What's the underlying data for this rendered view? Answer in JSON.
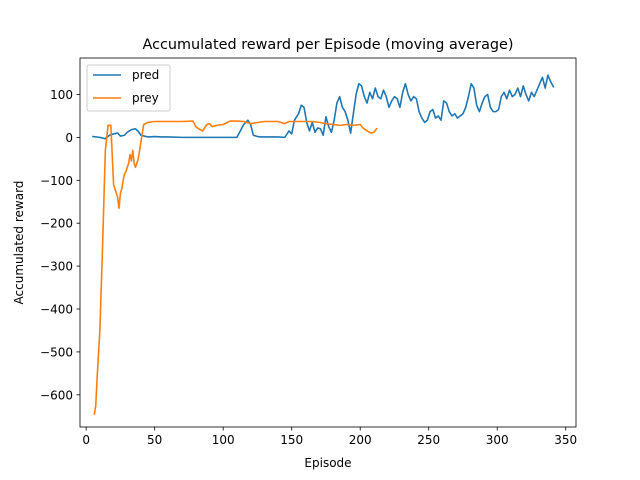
{
  "chart_data": {
    "type": "line",
    "title": "Accumulated reward per Episode (moving average)",
    "xlabel": "Episode",
    "ylabel": "Accumulated reward",
    "xlim": [
      -4.5,
      357.5
    ],
    "ylim": [
      -675,
      185
    ],
    "xticks": [
      0,
      50,
      100,
      150,
      200,
      250,
      300,
      350
    ],
    "yticks": [
      -600,
      -500,
      -400,
      -300,
      -200,
      -100,
      0,
      100
    ],
    "ytick_labels": [
      "−600",
      "−500",
      "−400",
      "−300",
      "−200",
      "−100",
      "0",
      "100"
    ],
    "legend_position": "upper-left",
    "grid": false,
    "series": [
      {
        "name": "pred",
        "color": "#1f77b4",
        "x": [
          5,
          10,
          14,
          17,
          20,
          23,
          25,
          28,
          30,
          33,
          36,
          38,
          40,
          45,
          50,
          55,
          60,
          70,
          80,
          90,
          100,
          110,
          115,
          118,
          120,
          122,
          125,
          128,
          130,
          140,
          145,
          148,
          150,
          152,
          155,
          157,
          159,
          161,
          163,
          165,
          167,
          169,
          171,
          173,
          175,
          177,
          179,
          181,
          183,
          185,
          187,
          189,
          191,
          193,
          195,
          197,
          199,
          201,
          203,
          205,
          207,
          209,
          211,
          213,
          215,
          217,
          219,
          221,
          223,
          225,
          227,
          229,
          231,
          233,
          235,
          237,
          239,
          241,
          243,
          245,
          247,
          249,
          251,
          253,
          255,
          257,
          259,
          261,
          263,
          265,
          267,
          269,
          271,
          273,
          275,
          277,
          279,
          281,
          283,
          285,
          287,
          289,
          291,
          293,
          295,
          297,
          299,
          301,
          303,
          305,
          307,
          309,
          311,
          313,
          315,
          317,
          319,
          321,
          323,
          325,
          327,
          329,
          331,
          333,
          335,
          337,
          339,
          341
        ],
        "values": [
          2,
          0,
          -3,
          5,
          8,
          10,
          3,
          5,
          12,
          18,
          20,
          14,
          5,
          1,
          2,
          1,
          1,
          0,
          0,
          0,
          0,
          0,
          30,
          40,
          30,
          5,
          2,
          1,
          1,
          1,
          0,
          15,
          8,
          40,
          55,
          75,
          70,
          35,
          15,
          35,
          12,
          22,
          20,
          5,
          48,
          25,
          12,
          40,
          80,
          95,
          70,
          60,
          40,
          10,
          55,
          100,
          125,
          120,
          95,
          80,
          105,
          90,
          115,
          95,
          90,
          110,
          95,
          70,
          85,
          95,
          90,
          70,
          105,
          125,
          100,
          85,
          95,
          90,
          60,
          45,
          35,
          40,
          60,
          65,
          45,
          50,
          40,
          85,
          80,
          60,
          50,
          55,
          45,
          50,
          55,
          70,
          95,
          125,
          115,
          75,
          60,
          80,
          95,
          100,
          70,
          60,
          60,
          65,
          95,
          105,
          90,
          110,
          95,
          100,
          115,
          95,
          120,
          100,
          85,
          105,
          95,
          110,
          125,
          140,
          115,
          145,
          130,
          118
        ]
      },
      {
        "name": "prey",
        "color": "#ff7f0e",
        "x": [
          6,
          7,
          8,
          10,
          12,
          14,
          16,
          18,
          19,
          20,
          21,
          22,
          23,
          24,
          25,
          26,
          27,
          28,
          29,
          30,
          31,
          32,
          33,
          34,
          35,
          36,
          37,
          38,
          39,
          40,
          42,
          45,
          50,
          60,
          70,
          78,
          80,
          82,
          85,
          88,
          90,
          92,
          95,
          100,
          105,
          110,
          115,
          120,
          130,
          140,
          145,
          148,
          150,
          155,
          160,
          165,
          170,
          175,
          180,
          185,
          190,
          195,
          200,
          202,
          205,
          208,
          210,
          212
        ],
        "values": [
          -645,
          -625,
          -560,
          -450,
          -250,
          -30,
          28,
          28,
          -40,
          -110,
          -120,
          -130,
          -140,
          -165,
          -130,
          -120,
          -100,
          -85,
          -80,
          -70,
          -60,
          -40,
          -55,
          -30,
          -60,
          -70,
          -60,
          -50,
          -30,
          -10,
          30,
          35,
          37,
          37,
          37,
          38,
          25,
          20,
          15,
          30,
          32,
          25,
          28,
          30,
          38,
          38,
          37,
          32,
          37,
          37,
          32,
          37,
          37,
          37,
          37,
          37,
          35,
          32,
          30,
          28,
          30,
          28,
          30,
          22,
          15,
          10,
          12,
          20
        ]
      }
    ]
  }
}
